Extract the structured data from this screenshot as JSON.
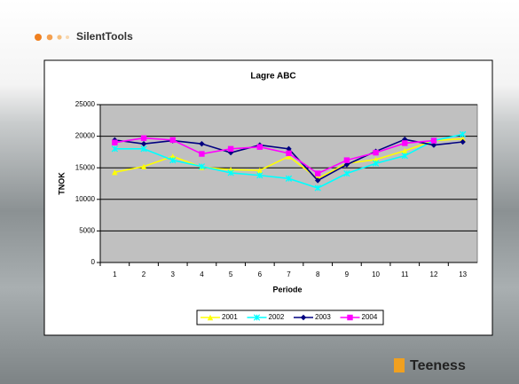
{
  "header": {
    "logo": "SilentTools"
  },
  "footer": {
    "brand": "Teeness"
  },
  "chart_data": {
    "type": "line",
    "title": "Lagre ABC",
    "x_label": "Periode",
    "y_label": "TNOK",
    "categories": [
      "1",
      "2",
      "3",
      "4",
      "5",
      "6",
      "7",
      "8",
      "9",
      "10",
      "11",
      "12",
      "13"
    ],
    "series": [
      {
        "name": "2001",
        "color": "#ffff00",
        "marker": "triangle",
        "values": [
          14300,
          15200,
          16800,
          15100,
          14700,
          14600,
          16800,
          13300,
          15700,
          16300,
          17700,
          19300,
          19600
        ]
      },
      {
        "name": "2002",
        "color": "#00ffff",
        "marker": "star",
        "values": [
          18000,
          18000,
          16200,
          15200,
          14200,
          13800,
          13300,
          11800,
          14100,
          15700,
          16900,
          19300,
          20300
        ]
      },
      {
        "name": "2003",
        "color": "#000080",
        "marker": "diamond",
        "values": [
          19400,
          18800,
          19300,
          18800,
          17400,
          18600,
          18000,
          13000,
          15500,
          17600,
          19500,
          18600,
          19100
        ]
      },
      {
        "name": "2004",
        "color": "#ff00ff",
        "marker": "square",
        "values": [
          19000,
          19700,
          19400,
          17200,
          18000,
          18300,
          17300,
          14100,
          16200,
          17400,
          18900,
          19300,
          null
        ]
      }
    ],
    "ylim": [
      0,
      25000
    ],
    "yticks": [
      0,
      5000,
      10000,
      15000,
      20000,
      25000
    ],
    "grid": true,
    "plot_background": "#c0c0c0",
    "legend": "bottom"
  }
}
